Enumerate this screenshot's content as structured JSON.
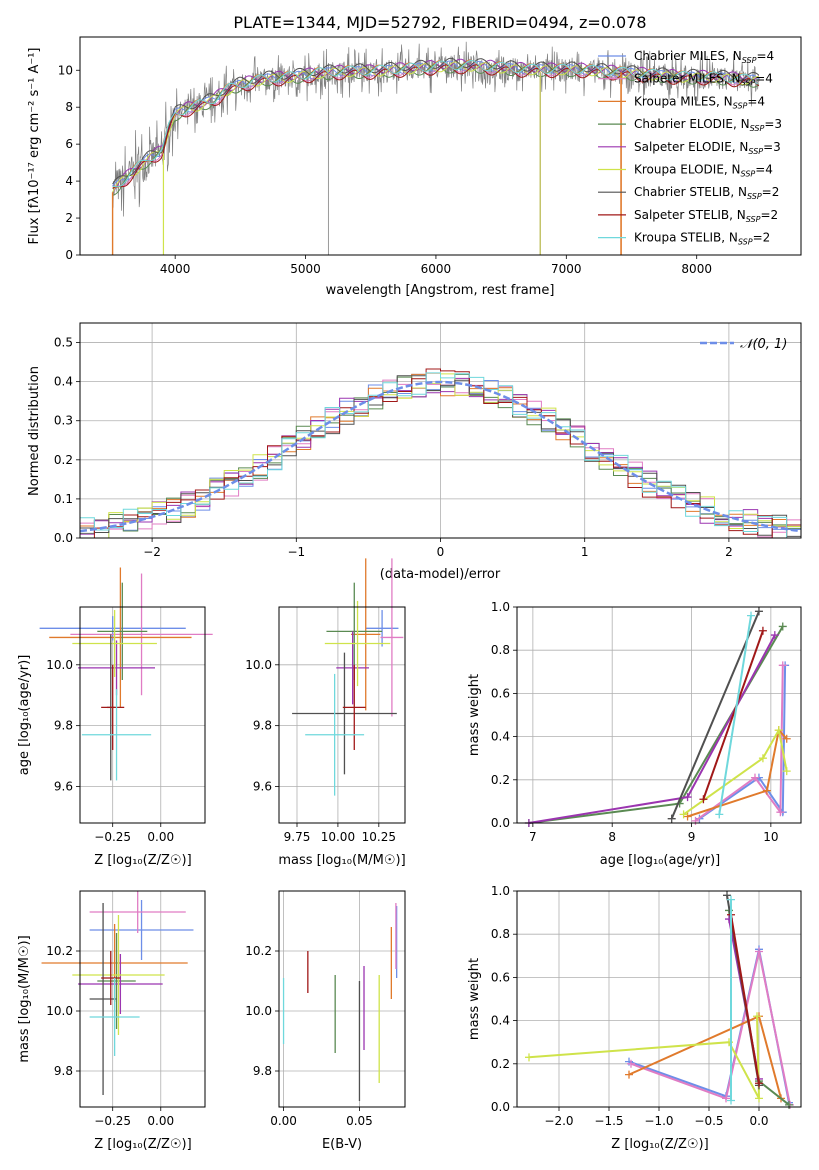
{
  "figure_title": "PLATE=1344, MJD=52792, FIBERID=0494, z=0.078",
  "models": [
    {
      "name": "Chabrier MILES",
      "nssp": "4",
      "color": "#6d8ee8"
    },
    {
      "name": "Salpeter MILES",
      "nssp": "4",
      "color": "#e07cc4"
    },
    {
      "name": "Kroupa MILES",
      "nssp": "4",
      "color": "#e07a2c"
    },
    {
      "name": "Chabrier ELODIE",
      "nssp": "3",
      "color": "#5a8a52"
    },
    {
      "name": "Salpeter ELODIE",
      "nssp": "3",
      "color": "#9b35b0"
    },
    {
      "name": "Kroupa ELODIE",
      "nssp": "4",
      "color": "#cfe34a"
    },
    {
      "name": "Chabrier STELIB",
      "nssp": "2",
      "color": "#505050"
    },
    {
      "name": "Salpeter STELIB",
      "nssp": "2",
      "color": "#a01818"
    },
    {
      "name": "Kroupa STELIB",
      "nssp": "2",
      "color": "#6fd8dc"
    }
  ],
  "chart_data": [
    {
      "id": "spectrum",
      "type": "line",
      "title": "PLATE=1344, MJD=52792, FIBERID=0494, z=0.078",
      "xlabel": "wavelength [Angstrom, rest frame]",
      "ylabel": "Flux [fλ10⁻¹⁷ erg cm⁻² s⁻¹ A⁻¹]",
      "xlim": [
        3270,
        8800
      ],
      "ylim": [
        0,
        11.8
      ],
      "xticks": [
        4000,
        5000,
        6000,
        7000,
        8000
      ],
      "yticks": [
        0,
        2,
        4,
        6,
        8,
        10
      ],
      "grid": false,
      "legend": "right",
      "continuum": {
        "x": [
          3520,
          3600,
          3700,
          3800,
          3900,
          3950,
          4000,
          4100,
          4200,
          4300,
          4400,
          4500,
          4700,
          4900,
          5100,
          5300,
          5500,
          5700,
          5900,
          6100,
          6300,
          6500,
          6700,
          6900,
          7100,
          7300,
          7500,
          7700,
          7900,
          8100,
          8300,
          8500
        ],
        "y": [
          3.5,
          4.0,
          4.6,
          5.2,
          5.6,
          6.8,
          7.6,
          7.9,
          8.1,
          8.4,
          8.9,
          9.2,
          9.5,
          9.6,
          9.8,
          9.9,
          9.9,
          10.0,
          10.1,
          10.2,
          10.2,
          10.1,
          10.0,
          10.0,
          10.0,
          9.9,
          9.8,
          9.7,
          9.6,
          9.6,
          9.5,
          9.4
        ]
      },
      "observed_range": [
        3520,
        8480
      ]
    },
    {
      "id": "residuals",
      "type": "area",
      "xlabel": "(data-model)/error",
      "ylabel": "Normed distribution",
      "xlim": [
        -2.5,
        2.5
      ],
      "ylim": [
        0,
        0.55
      ],
      "xticks": [
        -2,
        -1,
        0,
        1,
        2
      ],
      "yticks": [
        0.0,
        0.1,
        0.2,
        0.3,
        0.4,
        0.5
      ],
      "grid": true,
      "legend": "top-right",
      "reference_label": "𝒩(0, 1)",
      "reference_color": "#6d8ee8",
      "bin_width": 0.1,
      "bin_start": -2.5
    },
    {
      "id": "age-vs-z",
      "type": "scatter",
      "xlabel": "Z [log₁₀(Z/Z☉)]",
      "ylabel": "age  [log₁₀(age/yr)]",
      "xlim": [
        -0.42,
        0.23
      ],
      "ylim": [
        9.48,
        10.19
      ],
      "xticks": [
        -0.25,
        0.0
      ],
      "xticklabels": [
        "−0.25",
        "0.00"
      ],
      "yticks": [
        9.6,
        9.8,
        10.0
      ],
      "grid": true,
      "points": [
        {
          "x": -0.25,
          "xerr": 0.38,
          "y": 10.12,
          "yerr": 0.04
        },
        {
          "x": -0.1,
          "xerr": 0.37,
          "y": 10.1,
          "yerr": 0.2
        },
        {
          "x": -0.21,
          "xerr": 0.37,
          "y": 10.09,
          "yerr": 0.23
        },
        {
          "x": -0.2,
          "xerr": 0.13,
          "y": 10.11,
          "yerr": 0.16
        },
        {
          "x": -0.23,
          "xerr": 0.2,
          "y": 9.99,
          "yerr": 0.09
        },
        {
          "x": -0.24,
          "xerr": 0.22,
          "y": 10.07,
          "yerr": 0.11
        },
        {
          "x": -0.26,
          "xerr": 0.02,
          "y": 9.86,
          "yerr": 0.24
        },
        {
          "x": -0.25,
          "xerr": 0.06,
          "y": 9.86,
          "yerr": 0.14
        },
        {
          "x": -0.23,
          "xerr": 0.18,
          "y": 9.77,
          "yerr": 0.15
        }
      ]
    },
    {
      "id": "age-vs-mass",
      "type": "scatter",
      "xlabel": "mass [log₁₀(M/M☉)]",
      "xlim": [
        9.64,
        10.41
      ],
      "ylim": [
        9.48,
        10.19
      ],
      "xticks": [
        9.75,
        10.0,
        10.25
      ],
      "xticklabels": [
        "9.75",
        "10.00",
        "10.25"
      ],
      "yticks": [
        9.6,
        9.8,
        10.0
      ],
      "grid": true,
      "points": [
        {
          "x": 10.27,
          "xerr": 0.1,
          "y": 10.12,
          "yerr": 0.06
        },
        {
          "x": 10.33,
          "xerr": 0.07,
          "y": 10.09,
          "yerr": 0.26
        },
        {
          "x": 10.17,
          "xerr": 0.09,
          "y": 10.1,
          "yerr": 0.25
        },
        {
          "x": 10.1,
          "xerr": 0.17,
          "y": 10.11,
          "yerr": 0.16
        },
        {
          "x": 10.09,
          "xerr": 0.1,
          "y": 9.99,
          "yerr": 0.12
        },
        {
          "x": 10.12,
          "xerr": 0.2,
          "y": 10.07,
          "yerr": 0.14
        },
        {
          "x": 10.04,
          "xerr": 0.32,
          "y": 9.84,
          "yerr": 0.2
        },
        {
          "x": 10.1,
          "xerr": 0.07,
          "y": 9.86,
          "yerr": 0.14
        },
        {
          "x": 9.98,
          "xerr": 0.18,
          "y": 9.77,
          "yerr": 0.2
        }
      ]
    },
    {
      "id": "mass-weight-vs-age",
      "type": "line",
      "xlabel": "age  [log₁₀(age/yr)]",
      "ylabel": "mass weight",
      "xlim": [
        6.8,
        10.38
      ],
      "ylim": [
        0.0,
        1.0
      ],
      "xticks": [
        7,
        8,
        9,
        10
      ],
      "yticks": [
        0.0,
        0.2,
        0.4,
        0.6,
        0.8,
        1.0
      ],
      "grid": true,
      "series": [
        {
          "x": [
            9.1,
            9.85,
            10.15,
            10.18
          ],
          "y": [
            0.02,
            0.21,
            0.05,
            0.73
          ]
        },
        {
          "x": [
            9.05,
            9.8,
            10.12,
            10.15
          ],
          "y": [
            0.01,
            0.21,
            0.05,
            0.73
          ]
        },
        {
          "x": [
            8.95,
            9.95,
            10.1,
            10.2
          ],
          "y": [
            0.03,
            0.15,
            0.43,
            0.39
          ]
        },
        {
          "x": [
            6.95,
            8.85,
            10.15
          ],
          "y": [
            0.0,
            0.09,
            0.91
          ]
        },
        {
          "x": [
            6.95,
            8.95,
            10.05
          ],
          "y": [
            0.0,
            0.12,
            0.87
          ]
        },
        {
          "x": [
            8.9,
            9.9,
            10.1,
            10.2
          ],
          "y": [
            0.04,
            0.3,
            0.43,
            0.24
          ]
        },
        {
          "x": [
            8.75,
            9.85
          ],
          "y": [
            0.02,
            0.98
          ]
        },
        {
          "x": [
            9.15,
            9.9
          ],
          "y": [
            0.11,
            0.89
          ]
        },
        {
          "x": [
            9.35,
            9.75
          ],
          "y": [
            0.04,
            0.96
          ]
        }
      ]
    },
    {
      "id": "mass-vs-z",
      "type": "scatter",
      "xlabel": "Z [log₁₀(Z/Z☉)]",
      "ylabel": "mass [log₁₀(M/M☉)]",
      "xlim": [
        -0.42,
        0.23
      ],
      "ylim": [
        9.68,
        10.4
      ],
      "xticks": [
        -0.25,
        0.0
      ],
      "xticklabels": [
        "−0.25",
        "0.00"
      ],
      "yticks": [
        9.8,
        10.0,
        10.2
      ],
      "grid": true,
      "points": [
        {
          "x": -0.1,
          "xerr": 0.27,
          "y": 10.27,
          "yerr": 0.1
        },
        {
          "x": -0.12,
          "xerr": 0.25,
          "y": 10.33,
          "yerr": 0.07
        },
        {
          "x": -0.24,
          "xerr": 0.38,
          "y": 10.16,
          "yerr": 0.13
        },
        {
          "x": -0.23,
          "xerr": 0.1,
          "y": 10.1,
          "yerr": 0.16
        },
        {
          "x": -0.21,
          "xerr": 0.22,
          "y": 10.09,
          "yerr": 0.1
        },
        {
          "x": -0.22,
          "xerr": 0.24,
          "y": 10.12,
          "yerr": 0.2
        },
        {
          "x": -0.3,
          "xerr": 0.07,
          "y": 10.04,
          "yerr": 0.32
        },
        {
          "x": -0.26,
          "xerr": 0.05,
          "y": 10.11,
          "yerr": 0.09
        },
        {
          "x": -0.24,
          "xerr": 0.13,
          "y": 9.98,
          "yerr": 0.13
        }
      ]
    },
    {
      "id": "mass-vs-ebv",
      "type": "scatter",
      "xlabel": "E(B-V)",
      "xlim": [
        -0.003,
        0.08
      ],
      "ylim": [
        9.68,
        10.4
      ],
      "xticks": [
        0.0,
        0.05
      ],
      "xticklabels": [
        "0.00",
        "0.05"
      ],
      "yticks": [
        9.8,
        10.0,
        10.2
      ],
      "grid": true,
      "points": [
        {
          "x": 0.0745,
          "y": 10.23,
          "yerr": 0.12
        },
        {
          "x": 0.074,
          "y": 10.25,
          "yerr": 0.11
        },
        {
          "x": 0.071,
          "y": 10.16,
          "yerr": 0.12
        },
        {
          "x": 0.034,
          "y": 9.99,
          "yerr": 0.13
        },
        {
          "x": 0.053,
          "y": 10.01,
          "yerr": 0.14
        },
        {
          "x": 0.063,
          "y": 9.94,
          "yerr": 0.18
        },
        {
          "x": 0.05,
          "y": 9.9,
          "yerr": 0.2
        },
        {
          "x": 0.016,
          "y": 10.13,
          "yerr": 0.07
        },
        {
          "x": 0.0,
          "y": 10.0,
          "yerr": 0.11
        }
      ]
    },
    {
      "id": "mass-weight-vs-z",
      "type": "line",
      "xlabel": "Z [log₁₀(Z/Z☉)]",
      "ylabel": "mass weight",
      "xlim": [
        -2.42,
        0.42
      ],
      "ylim": [
        0.0,
        1.0
      ],
      "xticks": [
        -2.0,
        -1.5,
        -1.0,
        -0.5,
        0.0
      ],
      "xticklabels": [
        "−2.0",
        "−1.5",
        "−1.0",
        "−0.5",
        "0.0"
      ],
      "yticks": [
        0.0,
        0.2,
        0.4,
        0.6,
        0.8,
        1.0
      ],
      "grid": true,
      "series": [
        {
          "x": [
            -1.3,
            -0.33,
            0.0,
            0.3
          ],
          "y": [
            0.21,
            0.05,
            0.73,
            0.02
          ]
        },
        {
          "x": [
            -1.28,
            -0.33,
            0.0,
            0.31
          ],
          "y": [
            0.2,
            0.04,
            0.72,
            0.01
          ]
        },
        {
          "x": [
            -1.3,
            0.0,
            0.22
          ],
          "y": [
            0.15,
            0.42,
            0.04
          ]
        },
        {
          "x": [
            -0.3,
            0.0,
            0.3
          ],
          "y": [
            0.91,
            0.12,
            0.01
          ]
        },
        {
          "x": [
            -0.3,
            0.0
          ],
          "y": [
            0.87,
            0.13
          ]
        },
        {
          "x": [
            -2.3,
            -0.3,
            0.0,
            -0.02
          ],
          "y": [
            0.23,
            0.3,
            0.04,
            0.42
          ]
        },
        {
          "x": [
            -0.32,
            0.0
          ],
          "y": [
            0.98,
            0.1
          ]
        },
        {
          "x": [
            -0.28,
            0.0
          ],
          "y": [
            0.89,
            0.11
          ]
        },
        {
          "x": [
            -0.28,
            -0.28
          ],
          "y": [
            0.96,
            0.03
          ]
        }
      ]
    }
  ]
}
